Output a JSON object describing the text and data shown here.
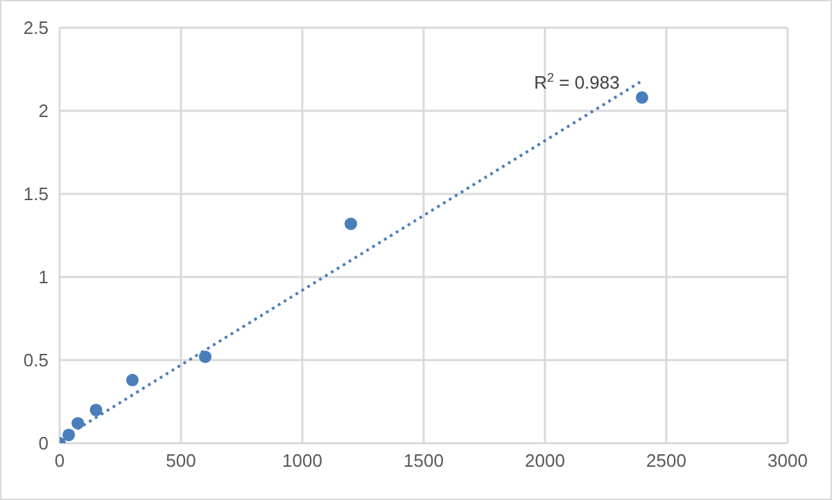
{
  "chart_data": {
    "type": "scatter",
    "series": [
      {
        "color": "#4a7ebb",
        "marker": "circle",
        "x": [
          0,
          37.5,
          75,
          150,
          300,
          600,
          1200,
          2400
        ],
        "values": [
          0,
          0.05,
          0.12,
          0.2,
          0.38,
          0.52,
          1.32,
          2.08
        ]
      },
      {
        "type": "line",
        "color": "#4a7ebb",
        "marker": "none",
        "line_style": "dotted",
        "x": [
          0,
          2400
        ],
        "values": [
          0.02,
          2.18
        ]
      }
    ],
    "xlim": [
      0,
      3000
    ],
    "xticks": [
      0,
      500,
      1000,
      1500,
      2000,
      2500,
      3000
    ],
    "ylim": [
      0,
      2.5
    ],
    "yticks": [
      0,
      0.5,
      1,
      1.5,
      2,
      2.5
    ],
    "grid": true,
    "annotations": [
      "R$^{2}$ = 0.983"
    ]
  }
}
